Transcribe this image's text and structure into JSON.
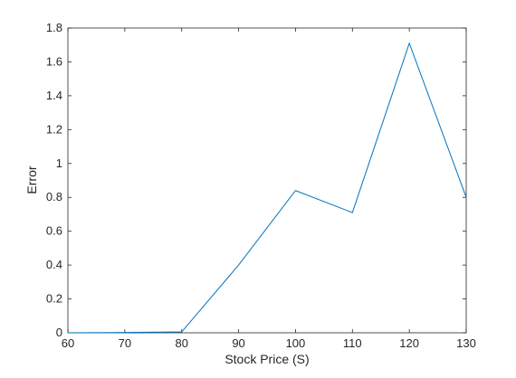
{
  "chart_data": {
    "type": "line",
    "title": "",
    "xlabel": "Stock Price (S)",
    "ylabel": "Error",
    "xlim": [
      60,
      130
    ],
    "ylim": [
      0,
      1.8
    ],
    "xticks": [
      60,
      70,
      80,
      90,
      100,
      110,
      120,
      130
    ],
    "yticks": [
      0,
      0.2,
      0.4,
      0.6,
      0.8,
      1,
      1.2,
      1.4,
      1.6,
      1.8
    ],
    "ytick_labels": [
      "0",
      "0.2",
      "0.4",
      "0.6",
      "0.8",
      "1",
      "1.2",
      "1.4",
      "1.6",
      "1.8"
    ],
    "grid": false,
    "legend": "none",
    "series": [
      {
        "x": [
          60,
          70,
          80,
          90,
          100,
          110,
          120,
          130
        ],
        "y": [
          0.0,
          0.002,
          0.005,
          0.4,
          0.84,
          0.71,
          1.71,
          0.8
        ],
        "color": "#0072bd"
      }
    ]
  }
}
